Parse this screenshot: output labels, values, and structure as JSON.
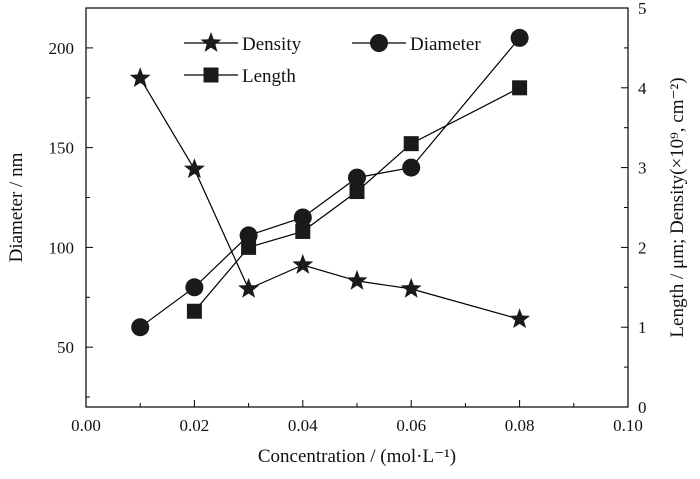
{
  "chart_data": {
    "type": "line",
    "xlabel": "Concentration / (mol·L⁻¹)",
    "ylabel_left": "Diameter / nm",
    "ylabel_right": "Length / μm; Density(×10⁹, cm⁻²)",
    "xlim": [
      0.0,
      0.1
    ],
    "ylim_left": [
      20,
      220
    ],
    "ylim_right": [
      0,
      5
    ],
    "x_ticks": [
      0.0,
      0.02,
      0.04,
      0.06,
      0.08,
      0.1
    ],
    "x_tick_labels": [
      "0.00",
      "0.02",
      "0.04",
      "0.06",
      "0.08",
      "0.10"
    ],
    "y_left_ticks": [
      50,
      100,
      150,
      200
    ],
    "y_left_tick_labels": [
      "50",
      "100",
      "150",
      "200"
    ],
    "y_right_ticks": [
      0,
      1,
      2,
      3,
      4,
      5
    ],
    "y_right_tick_labels": [
      "0",
      "1",
      "2",
      "3",
      "4",
      "5"
    ],
    "grid": false,
    "legend_position": "top-center",
    "series": [
      {
        "name": "Density",
        "marker": "star",
        "axis": "right",
        "x": [
          0.01,
          0.02,
          0.03,
          0.04,
          0.05,
          0.06,
          0.08
        ],
        "y": [
          4.12,
          2.98,
          1.48,
          1.78,
          1.58,
          1.48,
          1.1
        ]
      },
      {
        "name": "Diameter",
        "marker": "circle",
        "axis": "left",
        "x": [
          0.01,
          0.02,
          0.03,
          0.04,
          0.05,
          0.06,
          0.08
        ],
        "y": [
          60,
          80,
          106,
          115,
          135,
          140,
          205
        ]
      },
      {
        "name": "Length",
        "marker": "square",
        "axis": "right",
        "x": [
          0.02,
          0.03,
          0.04,
          0.05,
          0.06,
          0.08
        ],
        "y": [
          1.2,
          2.0,
          2.2,
          2.7,
          3.3,
          4.0
        ]
      }
    ],
    "colors": {
      "line": "#000000",
      "marker": "#1a1a1a"
    }
  }
}
